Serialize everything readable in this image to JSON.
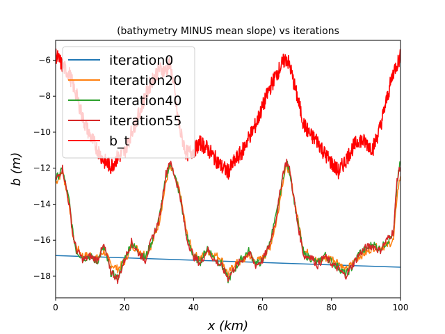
{
  "chart_data": {
    "type": "line",
    "title": "(bathymetry MINUS mean slope) vs iterations",
    "xlabel": "x (km)",
    "ylabel": "b (m)",
    "xlim": [
      0,
      100
    ],
    "ylim": [
      -19.2,
      -4.9
    ],
    "xticks": [
      0,
      20,
      40,
      60,
      80,
      100
    ],
    "yticks": [
      -18,
      -16,
      -14,
      -12,
      -10,
      -8,
      -6
    ],
    "legend_position": "upper-left",
    "grid": false,
    "series": [
      {
        "name": "iteration0",
        "color": "#1f77b4",
        "x": [
          0,
          100
        ],
        "y": [
          -16.85,
          -17.5
        ]
      },
      {
        "name": "iteration20",
        "color": "#ff7f0e",
        "x": [
          0,
          2,
          4,
          5,
          6,
          8,
          10,
          12,
          14,
          16,
          18,
          20,
          22,
          24,
          26,
          28,
          30,
          32,
          33,
          34,
          36,
          38,
          40,
          42,
          44,
          46,
          48,
          50,
          52,
          54,
          56,
          58,
          60,
          62,
          64,
          66,
          67,
          68,
          70,
          72,
          74,
          76,
          78,
          80,
          82,
          84,
          86,
          88,
          90,
          92,
          94,
          96,
          98,
          99,
          100
        ],
        "y": [
          -12.8,
          -12.2,
          -14.0,
          -15.8,
          -16.4,
          -16.9,
          -16.8,
          -17.0,
          -16.6,
          -17.3,
          -17.6,
          -17.2,
          -16.3,
          -16.5,
          -16.8,
          -16.2,
          -15.0,
          -12.8,
          -12.0,
          -12.2,
          -13.3,
          -15.6,
          -16.8,
          -17.0,
          -16.6,
          -16.8,
          -17.0,
          -17.9,
          -17.3,
          -17.2,
          -16.8,
          -17.2,
          -17.0,
          -16.5,
          -15.0,
          -12.6,
          -11.8,
          -12.4,
          -14.6,
          -16.6,
          -16.8,
          -17.2,
          -17.0,
          -17.0,
          -17.2,
          -17.7,
          -17.3,
          -16.9,
          -16.7,
          -16.4,
          -16.4,
          -16.3,
          -16.0,
          -13.5,
          -12.4
        ]
      },
      {
        "name": "iteration40",
        "color": "#2ca02c",
        "x": [
          0,
          2,
          4,
          5,
          6,
          8,
          10,
          12,
          14,
          16,
          18,
          20,
          22,
          24,
          26,
          28,
          30,
          32,
          33,
          34,
          36,
          38,
          40,
          42,
          44,
          46,
          48,
          50,
          52,
          54,
          56,
          58,
          60,
          62,
          64,
          66,
          67,
          68,
          70,
          72,
          74,
          76,
          78,
          80,
          82,
          84,
          86,
          88,
          90,
          92,
          94,
          96,
          98,
          99,
          100
        ],
        "y": [
          -12.6,
          -12.1,
          -13.9,
          -15.6,
          -16.6,
          -17.0,
          -16.9,
          -17.2,
          -16.4,
          -17.8,
          -18.1,
          -17.0,
          -16.2,
          -16.6,
          -17.0,
          -16.0,
          -14.8,
          -12.5,
          -11.8,
          -12.0,
          -13.5,
          -15.8,
          -16.9,
          -17.2,
          -16.4,
          -17.0,
          -17.3,
          -18.2,
          -17.6,
          -17.0,
          -16.6,
          -17.3,
          -17.2,
          -16.2,
          -14.6,
          -12.4,
          -11.7,
          -12.3,
          -14.8,
          -16.8,
          -17.0,
          -17.3,
          -16.8,
          -17.2,
          -17.5,
          -17.9,
          -17.5,
          -16.7,
          -16.5,
          -16.2,
          -16.5,
          -16.1,
          -15.6,
          -12.8,
          -11.6
        ]
      },
      {
        "name": "iteration55",
        "color": "#d62728",
        "x": [
          0,
          2,
          4,
          5,
          6,
          8,
          10,
          12,
          14,
          16,
          18,
          20,
          22,
          24,
          26,
          28,
          30,
          32,
          33,
          34,
          36,
          38,
          40,
          42,
          44,
          46,
          48,
          50,
          52,
          54,
          56,
          58,
          60,
          62,
          64,
          66,
          67,
          68,
          70,
          72,
          74,
          76,
          78,
          80,
          82,
          84,
          86,
          88,
          90,
          92,
          94,
          96,
          98,
          99,
          100
        ],
        "y": [
          -12.7,
          -12.0,
          -14.1,
          -15.7,
          -16.5,
          -17.1,
          -16.9,
          -17.1,
          -16.3,
          -17.7,
          -18.2,
          -17.1,
          -16.1,
          -16.7,
          -17.1,
          -15.9,
          -14.9,
          -12.3,
          -11.6,
          -12.1,
          -13.4,
          -15.9,
          -16.9,
          -17.3,
          -16.5,
          -17.1,
          -17.4,
          -18.1,
          -17.5,
          -17.1,
          -16.7,
          -17.4,
          -17.1,
          -16.3,
          -14.7,
          -12.2,
          -11.6,
          -12.2,
          -14.9,
          -16.9,
          -16.9,
          -17.4,
          -16.9,
          -17.3,
          -17.6,
          -18.0,
          -17.4,
          -16.8,
          -16.4,
          -16.3,
          -16.6,
          -16.0,
          -15.5,
          -12.6,
          -11.9
        ]
      },
      {
        "name": "b_t",
        "color": "#ff0000",
        "x": [
          0,
          2,
          4,
          6,
          8,
          10,
          12,
          14,
          16,
          18,
          20,
          22,
          24,
          26,
          28,
          30,
          32,
          33,
          34,
          35,
          36,
          38,
          40,
          42,
          44,
          46,
          48,
          50,
          52,
          54,
          56,
          58,
          60,
          62,
          64,
          66,
          67,
          68,
          70,
          72,
          74,
          76,
          78,
          80,
          82,
          84,
          86,
          88,
          90,
          92,
          94,
          96,
          98,
          100
        ],
        "y": [
          -5.7,
          -6.3,
          -6.8,
          -7.9,
          -9.3,
          -10.2,
          -10.9,
          -11.6,
          -11.9,
          -11.4,
          -11.1,
          -10.0,
          -9.1,
          -8.0,
          -7.1,
          -6.5,
          -6.6,
          -6.2,
          -7.0,
          -8.6,
          -9.9,
          -11.2,
          -11.0,
          -10.6,
          -10.9,
          -11.4,
          -11.9,
          -12.2,
          -11.6,
          -11.1,
          -10.3,
          -9.6,
          -8.6,
          -7.6,
          -6.8,
          -6.1,
          -5.9,
          -6.4,
          -8.0,
          -9.6,
          -10.2,
          -10.5,
          -11.2,
          -11.7,
          -12.2,
          -11.6,
          -10.9,
          -10.4,
          -10.6,
          -10.9,
          -9.8,
          -8.2,
          -6.6,
          -5.8
        ]
      }
    ]
  }
}
